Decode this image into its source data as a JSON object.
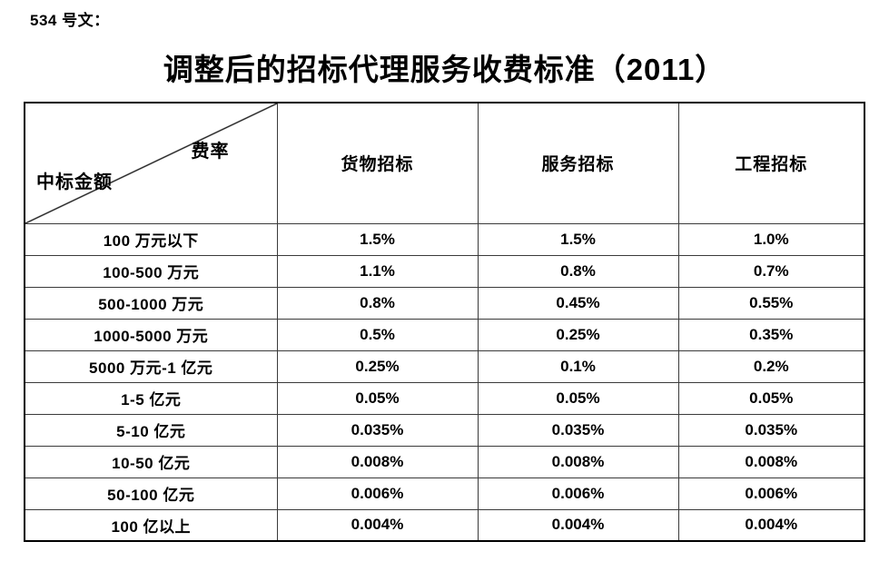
{
  "page": {
    "doc_label": "534 号文：",
    "title": "调整后的招标代理服务收费标准（2011）"
  },
  "table": {
    "corner": {
      "top_right": "费率",
      "bottom_left": "中标金额"
    },
    "columns": [
      "货物招标",
      "服务招标",
      "工程招标"
    ],
    "rows": [
      {
        "amount": "100 万元以下",
        "values": [
          "1.5%",
          "1.5%",
          "1.0%"
        ]
      },
      {
        "amount": "100-500 万元",
        "values": [
          "1.1%",
          "0.8%",
          "0.7%"
        ]
      },
      {
        "amount": "500-1000 万元",
        "values": [
          "0.8%",
          "0.45%",
          "0.55%"
        ]
      },
      {
        "amount": "1000-5000 万元",
        "values": [
          "0.5%",
          "0.25%",
          "0.35%"
        ]
      },
      {
        "amount": "5000 万元-1 亿元",
        "values": [
          "0.25%",
          "0.1%",
          "0.2%"
        ]
      },
      {
        "amount": "1-5 亿元",
        "values": [
          "0.05%",
          "0.05%",
          "0.05%"
        ]
      },
      {
        "amount": "5-10 亿元",
        "values": [
          "0.035%",
          "0.035%",
          "0.035%"
        ]
      },
      {
        "amount": "10-50 亿元",
        "values": [
          "0.008%",
          "0.008%",
          "0.008%"
        ]
      },
      {
        "amount": "50-100 亿元",
        "values": [
          "0.006%",
          "0.006%",
          "0.006%"
        ]
      },
      {
        "amount": "100 亿以上",
        "values": [
          "0.004%",
          "0.004%",
          "0.004%"
        ]
      }
    ],
    "colors": {
      "text": "#000000",
      "border_outer": "#000000",
      "border_inner": "#3a3a3a",
      "background": "#ffffff"
    }
  }
}
